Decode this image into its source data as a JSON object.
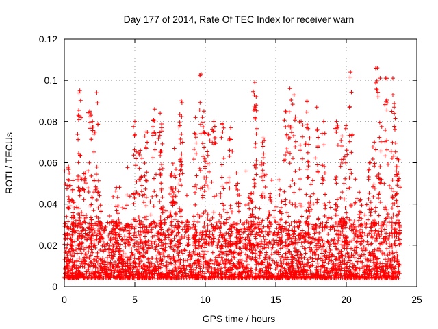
{
  "chart_data": {
    "type": "scatter",
    "title": "Day 177 of 2014, Rate Of TEC Index for receiver warn",
    "xlabel": "GPS time / hours",
    "ylabel": "ROTI / TECUs",
    "xlim": [
      0,
      25
    ],
    "ylim": [
      0,
      0.12
    ],
    "x_ticks": [
      0,
      5,
      10,
      15,
      20,
      25
    ],
    "y_ticks": [
      0,
      0.02,
      0.04,
      0.06,
      0.08,
      0.1,
      0.12
    ],
    "x_tick_labels": [
      "0",
      "5",
      "10",
      "15",
      "20",
      "25"
    ],
    "y_tick_labels": [
      "0",
      "0.02",
      "0.04",
      "0.06",
      "0.08",
      "0.1",
      "0.12"
    ],
    "grid": true,
    "marker": "+",
    "color": "#ff0000",
    "series": [
      {
        "name": "ROTI",
        "points": [
          [
            1.1,
            0.095
          ],
          [
            2.3,
            0.094
          ],
          [
            1.8,
            0.085
          ],
          [
            1.0,
            0.083
          ],
          [
            2.0,
            0.08
          ],
          [
            0.3,
            0.058
          ],
          [
            0.6,
            0.047
          ],
          [
            1.5,
            0.055
          ],
          [
            2.5,
            0.044
          ],
          [
            3.7,
            0.048
          ],
          [
            4.5,
            0.03
          ],
          [
            5.0,
            0.08
          ],
          [
            5.4,
            0.066
          ],
          [
            5.8,
            0.075
          ],
          [
            6.4,
            0.086
          ],
          [
            6.8,
            0.084
          ],
          [
            6.9,
            0.077
          ],
          [
            7.6,
            0.055
          ],
          [
            7.8,
            0.067
          ],
          [
            8.3,
            0.09
          ],
          [
            8.2,
            0.078
          ],
          [
            9.3,
            0.082
          ],
          [
            9.7,
            0.103
          ],
          [
            9.9,
            0.085
          ],
          [
            10.2,
            0.074
          ],
          [
            10.6,
            0.08
          ],
          [
            11.2,
            0.079
          ],
          [
            11.8,
            0.077
          ],
          [
            12.3,
            0.05
          ],
          [
            13.2,
            0.045
          ],
          [
            13.5,
            0.099
          ],
          [
            13.6,
            0.088
          ],
          [
            14.1,
            0.072
          ],
          [
            14.6,
            0.045
          ],
          [
            15.3,
            0.047
          ],
          [
            15.7,
            0.085
          ],
          [
            16.0,
            0.096
          ],
          [
            16.3,
            0.093
          ],
          [
            16.8,
            0.08
          ],
          [
            17.2,
            0.09
          ],
          [
            17.4,
            0.072
          ],
          [
            17.9,
            0.087
          ],
          [
            18.4,
            0.08
          ],
          [
            19.3,
            0.08
          ],
          [
            19.7,
            0.073
          ],
          [
            20.3,
            0.104
          ],
          [
            20.0,
            0.078
          ],
          [
            21.0,
            0.042
          ],
          [
            21.7,
            0.06
          ],
          [
            22.0,
            0.07
          ],
          [
            22.2,
            0.106
          ],
          [
            22.4,
            0.101
          ],
          [
            22.8,
            0.101
          ],
          [
            23.3,
            0.101
          ],
          [
            23.4,
            0.087
          ],
          [
            23.6,
            0.062
          ],
          [
            23.7,
            0.055
          ]
        ]
      }
    ]
  }
}
